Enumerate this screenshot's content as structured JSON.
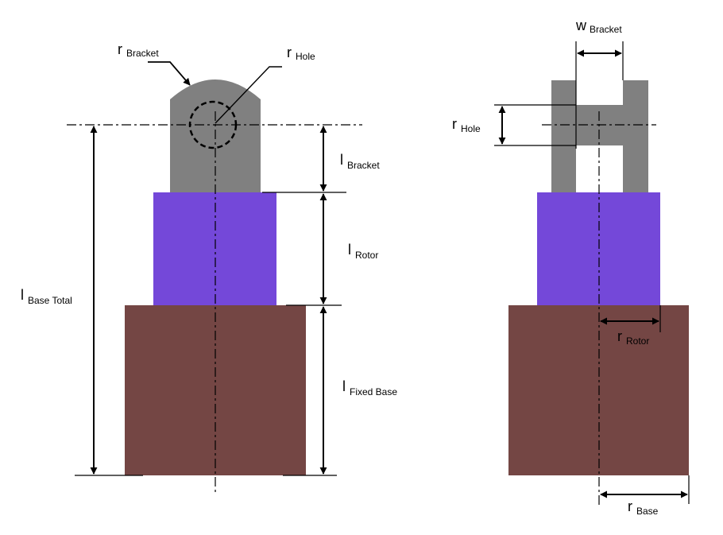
{
  "colors": {
    "bracket": "#808080",
    "rotor": "#7448D9",
    "base": "#744644",
    "line": "#000000"
  },
  "labels": {
    "r_bracket": {
      "main": "r",
      "sub": "Bracket"
    },
    "r_hole_front": {
      "main": "r",
      "sub": "Hole"
    },
    "l_bracket": {
      "main": "l",
      "sub": "Bracket"
    },
    "l_rotor": {
      "main": "l",
      "sub": "Rotor"
    },
    "l_base_total": {
      "main": "l",
      "sub": "Base Total"
    },
    "l_fixed_base": {
      "main": "l",
      "sub": "Fixed Base"
    },
    "w_bracket": {
      "main": "w",
      "sub": "Bracket"
    },
    "r_hole_side": {
      "main": "r",
      "sub": "Hole"
    },
    "r_rotor": {
      "main": "r",
      "sub": "Rotor"
    },
    "r_base": {
      "main": "r",
      "sub": "Base"
    }
  }
}
